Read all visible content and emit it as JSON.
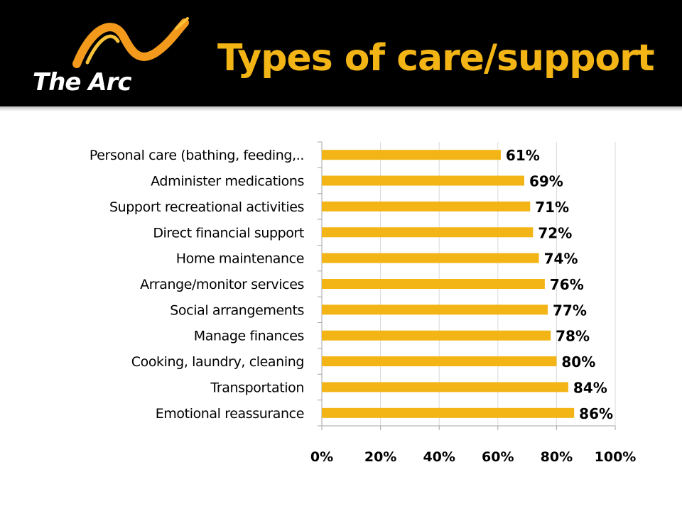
{
  "header": {
    "logo_text": "The Arc",
    "title": "Types of care/support"
  },
  "colors": {
    "header_bg": "#000000",
    "title": "#f3b515",
    "bar": "#f3b515",
    "logo_swoosh": "#f39a1c"
  },
  "chart_data": {
    "type": "bar",
    "orientation": "horizontal",
    "categories": [
      "Personal care (bathing, feeding,..",
      "Administer medications",
      "Support recreational activities",
      "Direct financial support",
      "Home maintenance",
      "Arrange/monitor services",
      "Social arrangements",
      "Manage finances",
      "Cooking, laundry, cleaning",
      "Transportation",
      "Emotional reassurance"
    ],
    "values": [
      61,
      69,
      71,
      72,
      74,
      76,
      77,
      78,
      80,
      84,
      86
    ],
    "data_labels": [
      "61%",
      "69%",
      "71%",
      "72%",
      "74%",
      "76%",
      "77%",
      "78%",
      "80%",
      "84%",
      "86%"
    ],
    "x_ticks": [
      "0%",
      "20%",
      "40%",
      "60%",
      "80%",
      "100%"
    ],
    "xlim": [
      0,
      100
    ],
    "grid": true,
    "legend": "none"
  }
}
